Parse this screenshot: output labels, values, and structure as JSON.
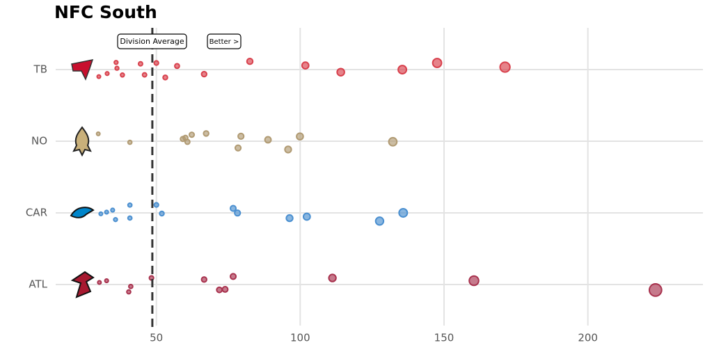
{
  "chart_data": {
    "type": "scatter",
    "title": "NFC South",
    "xlim": [
      15,
      240
    ],
    "xticks": [
      50,
      100,
      150,
      200
    ],
    "grid": true,
    "reference_line": {
      "value": 48.6,
      "label": "Division Average"
    },
    "annotation": "Better >",
    "series": [
      {
        "name": "TB",
        "color": "#d8404c",
        "values": [
          30.0,
          32.9,
          36.0,
          36.3,
          38.2,
          44.5,
          45.9,
          50.0,
          53.1,
          57.2,
          66.6,
          82.5,
          101.8,
          114.1,
          135.5,
          147.6,
          171.2
        ]
      },
      {
        "name": "NO",
        "color": "#b09a72",
        "values": [
          29.8,
          40.8,
          59.2,
          60.1,
          60.8,
          62.3,
          67.3,
          78.4,
          79.4,
          88.8,
          95.8,
          99.9,
          132.2
        ]
      },
      {
        "name": "CAR",
        "color": "#4a8fd0",
        "values": [
          30.7,
          32.7,
          34.8,
          35.8,
          40.8,
          40.8,
          50.0,
          51.9,
          76.7,
          78.2,
          96.3,
          102.3,
          127.6,
          135.8
        ]
      },
      {
        "name": "ATL",
        "color": "#a8324e",
        "values": [
          30.2,
          32.7,
          40.4,
          41.1,
          48.3,
          66.6,
          71.9,
          73.9,
          76.7,
          111.2,
          160.4,
          223.5
        ]
      }
    ]
  }
}
